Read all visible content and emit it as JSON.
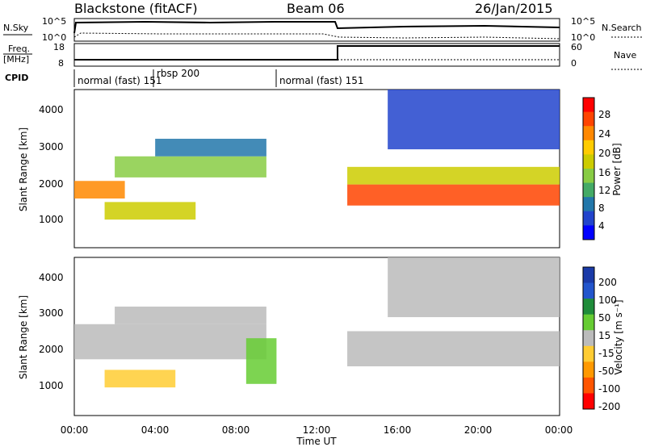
{
  "header": {
    "title": "Blackstone (fitACF)",
    "beam": "Beam 06",
    "date": "26/Jan/2015"
  },
  "sky_panel": {
    "left_label": "N.Sky",
    "right_label": "N.Search",
    "left_ticks": [
      "10^5",
      "10^0"
    ],
    "right_ticks": [
      "10^5",
      "10^0"
    ]
  },
  "freq_panel": {
    "left_label_1": "Freq.",
    "left_label_2": "[MHz]",
    "right_label": "Nave",
    "left_ticks": [
      "18",
      "8"
    ],
    "right_ticks": [
      "60",
      "0"
    ]
  },
  "cpid_panel": {
    "label": "CPID",
    "segments": [
      "normal (fast) 151",
      "rbsp 200",
      "normal (fast) 151"
    ]
  },
  "x_axis": {
    "label": "Time UT",
    "ticks": [
      "00:00",
      "04:00",
      "08:00",
      "12:00",
      "16:00",
      "20:00",
      "00:00"
    ]
  },
  "power_panel": {
    "ylabel": "Slant Range [km]",
    "yticks": [
      "4000",
      "3000",
      "2000",
      "1000"
    ],
    "colorbar_label": "Power [dB]",
    "colorbar_ticks": [
      "28",
      "24",
      "20",
      "16",
      "12",
      "8",
      "4"
    ],
    "colors": [
      "#ff0000",
      "#ff4400",
      "#ff8800",
      "#ffcc00",
      "#cccc00",
      "#88cc44",
      "#44aa66",
      "#2277aa",
      "#2244cc",
      "#0000ff"
    ]
  },
  "velocity_panel": {
    "ylabel": "Slant Range [km]",
    "yticks": [
      "4000",
      "3000",
      "2000",
      "1000"
    ],
    "colorbar_label": "Velocity [m s⁻¹]",
    "colorbar_ticks": [
      "200",
      "100",
      "50",
      "15",
      "-15",
      "-50",
      "-100",
      "-200"
    ],
    "colors": [
      "#1a3aa8",
      "#2255cc",
      "#1f8c3a",
      "#66cc33",
      "#bbbbbb",
      "#ffcc33",
      "#ff9900",
      "#ff5500",
      "#ff0000"
    ]
  },
  "chart_data": [
    {
      "type": "line",
      "name": "sky_noise",
      "x": [
        0,
        0.5,
        1,
        2,
        3,
        4,
        5,
        6,
        7,
        8,
        9,
        10,
        11,
        12,
        13,
        14,
        15,
        16,
        17,
        18,
        19,
        20,
        21,
        22,
        23,
        24
      ],
      "series": [
        {
          "values": [
            1000,
            60000,
            60000,
            60000,
            60000,
            60000,
            60000,
            60000,
            60000,
            60000,
            60000,
            60000,
            60000,
            60000,
            30000,
            30000,
            30000,
            30000,
            30000,
            30000,
            30000,
            30000,
            30000,
            30000,
            20000,
            20000
          ]
        }
      ]
    },
    {
      "type": "line",
      "name": "frequency_nave",
      "xlim": [
        0,
        24
      ],
      "series": [
        {
          "values": [
            9,
            9,
            9,
            9,
            9,
            9,
            9,
            9,
            9,
            9,
            9,
            9,
            9,
            9,
            18,
            18,
            18,
            18,
            18,
            18,
            18,
            18,
            18,
            18,
            18
          ]
        }
      ]
    },
    {
      "type": "heatmap",
      "name": "power",
      "xlim": [
        0,
        24
      ],
      "ylim": [
        0,
        4500
      ],
      "clim": [
        0,
        30
      ],
      "bands": [
        {
          "x": [
            0,
            2.5
          ],
          "y": [
            1400,
            1900
          ],
          "value": 22
        },
        {
          "x": [
            1.5,
            6
          ],
          "y": [
            800,
            1300
          ],
          "value": 18
        },
        {
          "x": [
            2,
            9.5
          ],
          "y": [
            2000,
            2600
          ],
          "value": 12
        },
        {
          "x": [
            4,
            9.5
          ],
          "y": [
            2600,
            3100
          ],
          "value": 6
        },
        {
          "x": [
            13.5,
            24
          ],
          "y": [
            1200,
            1800
          ],
          "value": 26
        },
        {
          "x": [
            13.5,
            24
          ],
          "y": [
            1800,
            2300
          ],
          "value": 16
        },
        {
          "x": [
            15.5,
            24
          ],
          "y": [
            2800,
            4500
          ],
          "value": 5
        }
      ]
    },
    {
      "type": "heatmap",
      "name": "velocity",
      "xlim": [
        0,
        24
      ],
      "ylim": [
        0,
        4500
      ],
      "clim": [
        -250,
        250
      ],
      "bands": [
        {
          "x": [
            0,
            9.5
          ],
          "y": [
            1600,
            2600
          ],
          "value": 0
        },
        {
          "x": [
            2,
            9.5
          ],
          "y": [
            2600,
            3100
          ],
          "value": 0
        },
        {
          "x": [
            1.5,
            5
          ],
          "y": [
            800,
            1300
          ],
          "value": -60
        },
        {
          "x": [
            13.5,
            24
          ],
          "y": [
            1400,
            2400
          ],
          "value": 0
        },
        {
          "x": [
            8.5,
            10
          ],
          "y": [
            900,
            2200
          ],
          "value": 40
        },
        {
          "x": [
            15.5,
            24
          ],
          "y": [
            2800,
            4500
          ],
          "value": 0
        }
      ]
    }
  ]
}
